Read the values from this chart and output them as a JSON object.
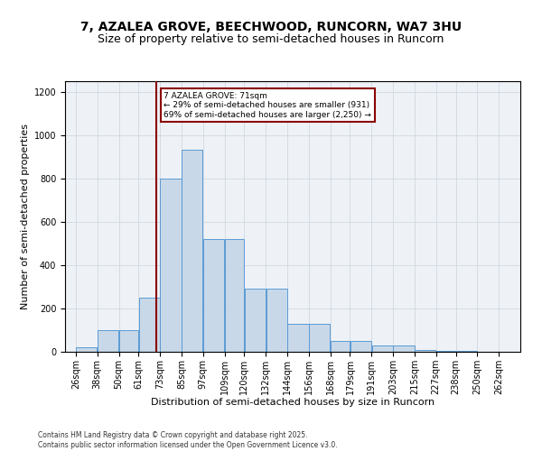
{
  "title_line1": "7, AZALEA GROVE, BEECHWOOD, RUNCORN, WA7 3HU",
  "title_line2": "Size of property relative to semi-detached houses in Runcorn",
  "xlabel": "Distribution of semi-detached houses by size in Runcorn",
  "ylabel": "Number of semi-detached properties",
  "footer_line1": "Contains HM Land Registry data © Crown copyright and database right 2025.",
  "footer_line2": "Contains public sector information licensed under the Open Government Licence v3.0.",
  "annotation_title": "7 AZALEA GROVE: 71sqm",
  "annotation_line1": "← 29% of semi-detached houses are smaller (931)",
  "annotation_line2": "69% of semi-detached houses are larger (2,250) →",
  "property_size": 71,
  "bar_left_edges": [
    26,
    38,
    50,
    61,
    73,
    85,
    97,
    109,
    120,
    132,
    144,
    156,
    168,
    179,
    191,
    203,
    215,
    227,
    238,
    250
  ],
  "bar_widths": [
    12,
    12,
    11,
    12,
    12,
    12,
    12,
    11,
    12,
    12,
    12,
    12,
    11,
    12,
    12,
    12,
    12,
    11,
    12,
    12
  ],
  "bar_heights": [
    20,
    100,
    100,
    250,
    800,
    935,
    520,
    520,
    290,
    290,
    130,
    130,
    50,
    50,
    30,
    30,
    10,
    5,
    5,
    2
  ],
  "tick_labels": [
    "26sqm",
    "38sqm",
    "50sqm",
    "61sqm",
    "73sqm",
    "85sqm",
    "97sqm",
    "109sqm",
    "120sqm",
    "132sqm",
    "144sqm",
    "156sqm",
    "168sqm",
    "179sqm",
    "191sqm",
    "203sqm",
    "215sqm",
    "227sqm",
    "238sqm",
    "250sqm",
    "262sqm"
  ],
  "bar_color": "#c8d8e8",
  "bar_edge_color": "#5b9bd5",
  "vline_color": "#8b0000",
  "vline_x": 71,
  "ylim": [
    0,
    1250
  ],
  "yticks": [
    0,
    200,
    400,
    600,
    800,
    1000,
    1200
  ],
  "grid_color": "#d0d8e0",
  "bg_color": "#eef2f7",
  "annotation_box_color": "#8b0000",
  "title_fontsize": 10,
  "subtitle_fontsize": 9,
  "axis_label_fontsize": 8,
  "tick_fontsize": 7,
  "footer_fontsize": 5.5
}
